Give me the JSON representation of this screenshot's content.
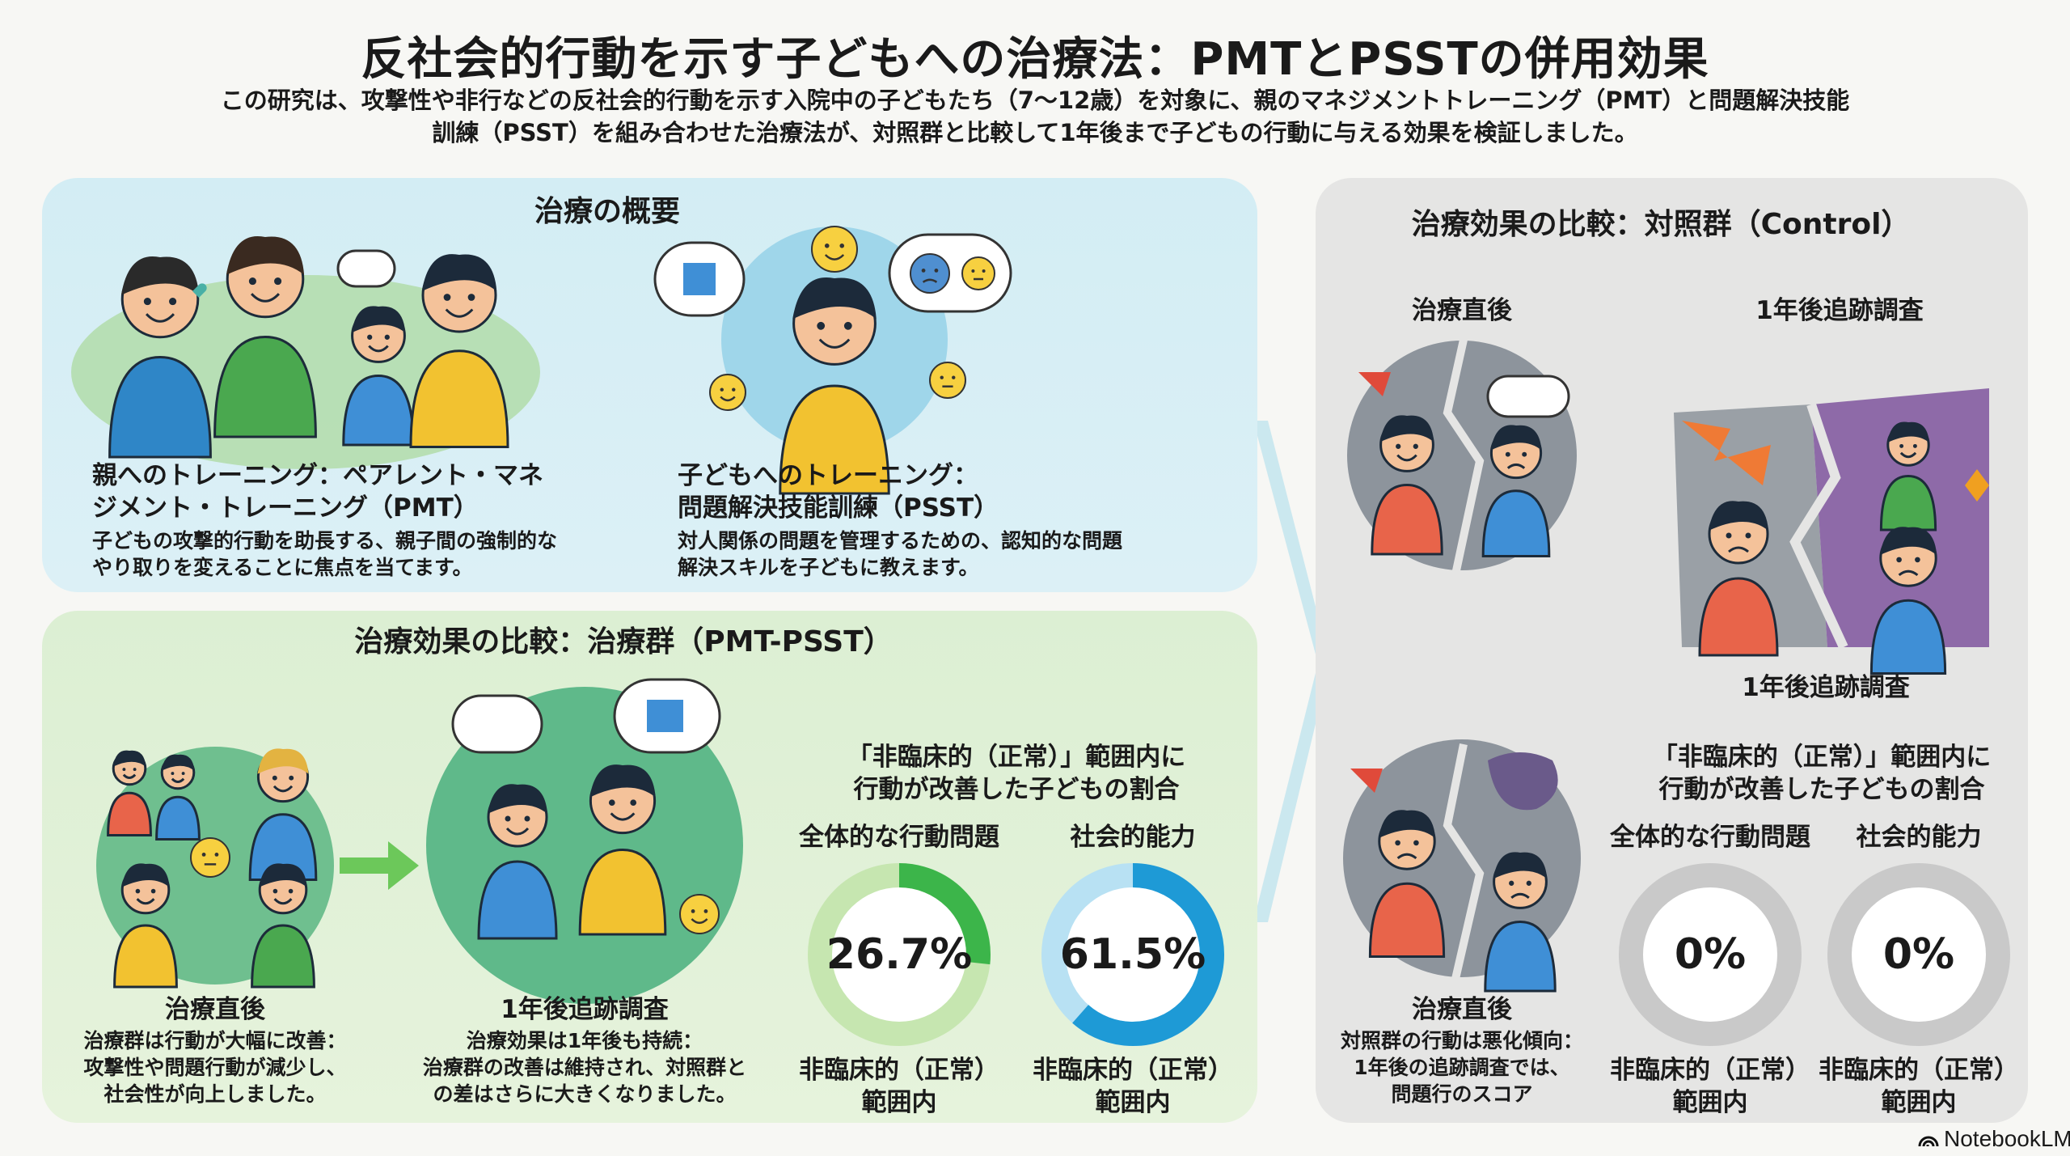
{
  "header": {
    "title": "反社会的行動を示す子どもへの治療法：PMTとPSSTの併用効果",
    "subtitle_lines": [
      "この研究は、攻撃性や非行などの反社会的行動を示す入院中の子どもたち（7〜12歳）を対象に、親のマネジメントトレーニング（PMT）と問題解決技能",
      "訓練（PSST）を組み合わせた治療法が、対照群と比較して1年後まで子どもの行動に与える効果を検証しました。"
    ]
  },
  "overview": {
    "heading": "治療の概要",
    "pmt": {
      "title_lines": [
        "親へのトレーニング：ペアレント・マネ",
        "ジメント・トレーニング（PMT）"
      ],
      "desc_lines": [
        "子どもの攻撃的行動を助長する、親子間の強制的な",
        "やり取りを変えることに焦点を当てます。"
      ]
    },
    "psst": {
      "title_lines": [
        "子どもへのトレーニング：",
        "問題解決技能訓練（PSST）"
      ],
      "desc_lines": [
        "対人関係の問題を管理するための、認知的な問題",
        "解決スキルを子どもに教えます。"
      ]
    }
  },
  "treatment": {
    "heading": "治療効果の比較：治療群（PMT-PSST）",
    "post": {
      "title": "治療直後",
      "desc_lines": [
        "治療群は行動が大幅に改善：",
        "攻撃性や問題行動が減少し、",
        "社会性が向上しました。"
      ]
    },
    "followup": {
      "title": "1年後追跡調査",
      "desc_lines": [
        "治療効果は1年後も持続：",
        "治療群の改善は維持され、対照群と",
        "の差はさらに大きくなりました。"
      ]
    },
    "rings_heading_lines": [
      "「非臨床的（正常）」範囲内に",
      "行動が改善した子どもの割合"
    ],
    "rings": [
      {
        "label": "全体的な行動問題",
        "value_text": "26.7%",
        "percent": 26.7,
        "caption_lines": [
          "非臨床的（正常）",
          "範囲内"
        ],
        "color": "#3cb54a",
        "track": "#c6e6b0"
      },
      {
        "label": "社会的能力",
        "value_text": "61.5%",
        "percent": 61.5,
        "caption_lines": [
          "非臨床的（正常）",
          "範囲内"
        ],
        "color": "#1e9ad6",
        "track": "#b8e1f3"
      }
    ]
  },
  "control": {
    "heading": "治療効果の比較：対照群（Control）",
    "post_label": "治療直後",
    "followup_label": "1年後追跡調査",
    "followup_caption": "1年後追跡調査",
    "post": {
      "title": "治療直後",
      "desc_lines": [
        "対照群の行動は悪化傾向：",
        "1年後の追跡調査では、",
        "問題行のスコア"
      ]
    },
    "rings_heading_lines": [
      "「非臨床的（正常）」範囲内に",
      "行動が改善した子どもの割合"
    ],
    "rings": [
      {
        "label": "全体的な行動問題",
        "value_text": "0%",
        "percent": 0,
        "caption_lines": [
          "非臨床的（正常）",
          "範囲内"
        ],
        "color": "#9a9a9a",
        "track": "#c9c9c9"
      },
      {
        "label": "社会的能力",
        "value_text": "0%",
        "percent": 0,
        "caption_lines": [
          "非臨床的（正常）",
          "範囲内"
        ],
        "color": "#9a9a9a",
        "track": "#c9c9c9"
      }
    ]
  },
  "footer": {
    "brand": "NotebookLM"
  }
}
